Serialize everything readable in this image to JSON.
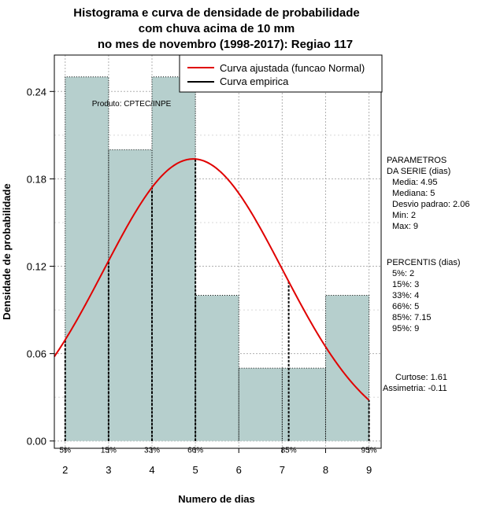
{
  "title_lines": [
    "Histograma e curva de densidade de probabilidade",
    "com chuva acima de 10 mm",
    "no mes de novembro (1998-2017): Regiao 117"
  ],
  "product_label": "Produto: CPTEC/INPE",
  "legend": {
    "fitted": "Curva ajustada (funcao Normal)",
    "empirical": "Curva empirica"
  },
  "parameters": {
    "heading": [
      "PARAMETROS",
      "DA SERIE (dias)"
    ],
    "lines": [
      "Media: 4.95",
      "Mediana: 5",
      "Desvio padrao: 2.06",
      "Min: 2",
      "Max: 9"
    ]
  },
  "percentiles": {
    "heading": "PERCENTIS (dias)",
    "lines": [
      "5%: 2",
      "15%: 3",
      "33%: 4",
      "66%: 5",
      "85%: 7.15",
      "95%: 9"
    ]
  },
  "shape": {
    "lines": [
      "Curtose: 1.61",
      "Assimetria: -0.11"
    ]
  },
  "colors": {
    "bar_fill": "#b6cfcd",
    "fitted_curve": "#e00000",
    "empirical": "#000000",
    "grid": "#b0b0b0"
  },
  "chart_data": {
    "type": "bar",
    "title": "Histograma e curva de densidade de probabilidade com chuva acima de 10 mm no mes de novembro (1998-2017): Regiao 117",
    "xlabel": "Numero de dias",
    "ylabel": "Densidade de probabilidade",
    "xlim": [
      1.75,
      9.28
    ],
    "ylim": [
      -0.005,
      0.265
    ],
    "xticks": [
      2,
      3,
      4,
      5,
      6,
      7,
      8,
      9
    ],
    "yticks": [
      0.0,
      0.06,
      0.12,
      0.18,
      0.24
    ],
    "ytick_labels": [
      "0.00",
      "0.06",
      "0.12",
      "0.18",
      "0.24"
    ],
    "bins": [
      {
        "from": 2,
        "to": 3,
        "density": 0.25
      },
      {
        "from": 3,
        "to": 4,
        "density": 0.2
      },
      {
        "from": 4,
        "to": 5,
        "density": 0.25
      },
      {
        "from": 5,
        "to": 6,
        "density": 0.1
      },
      {
        "from": 6,
        "to": 7,
        "density": 0.05
      },
      {
        "from": 7,
        "to": 8,
        "density": 0.05
      },
      {
        "from": 8,
        "to": 9,
        "density": 0.1
      }
    ],
    "normal_fit": {
      "mean": 4.95,
      "sd": 2.06
    },
    "percentile_markers": [
      {
        "label": "5%",
        "x": 2
      },
      {
        "label": "15%",
        "x": 3
      },
      {
        "label": "33%",
        "x": 4
      },
      {
        "label": "66%",
        "x": 5
      },
      {
        "label": "85%",
        "x": 7.15
      },
      {
        "label": "95%",
        "x": 9
      }
    ],
    "grid": true,
    "legend_position": "top-right"
  }
}
